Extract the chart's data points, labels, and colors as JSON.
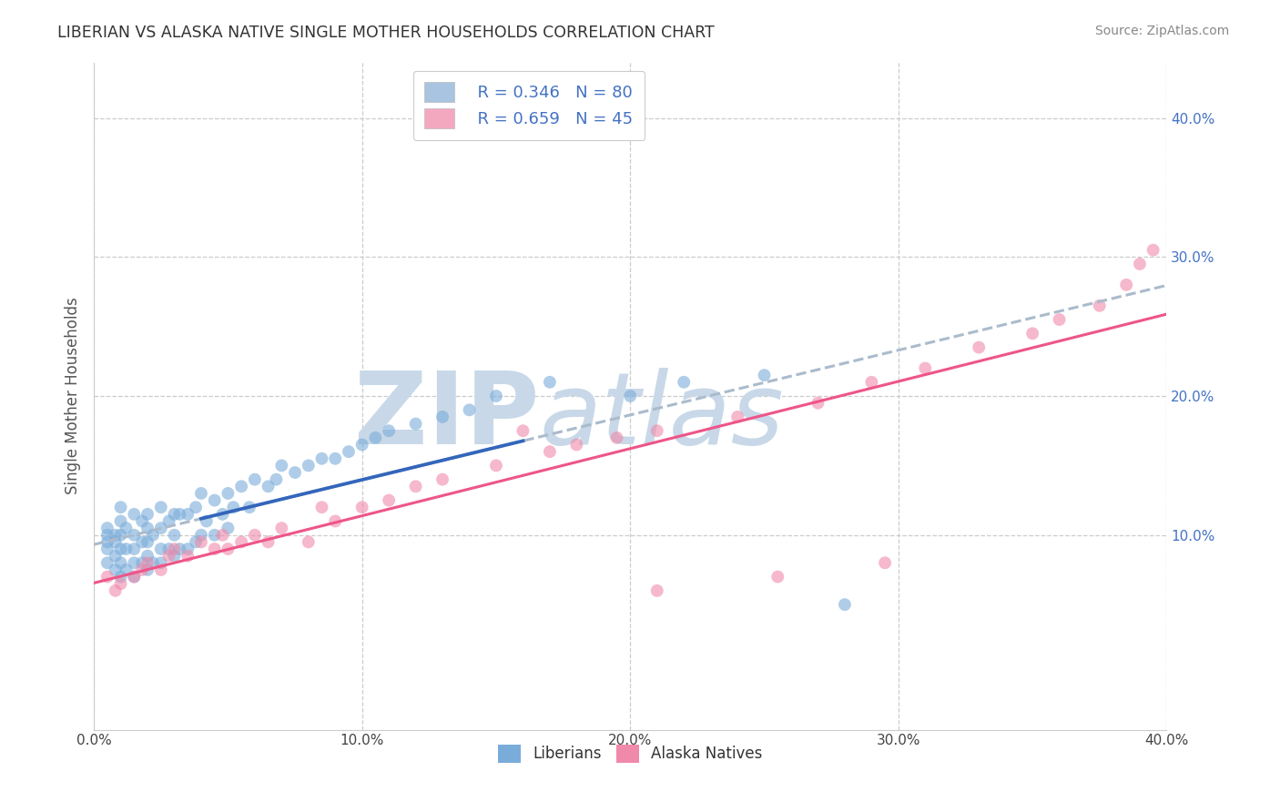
{
  "title": "LIBERIAN VS ALASKA NATIVE SINGLE MOTHER HOUSEHOLDS CORRELATION CHART",
  "source_text": "Source: ZipAtlas.com",
  "ylabel": "Single Mother Households",
  "xlim": [
    0.0,
    0.4
  ],
  "ylim": [
    -0.04,
    0.44
  ],
  "x_ticks": [
    0.0,
    0.1,
    0.2,
    0.3,
    0.4
  ],
  "x_tick_labels": [
    "0.0%",
    "10.0%",
    "20.0%",
    "30.0%",
    "40.0%"
  ],
  "y_ticks_right": [
    0.1,
    0.2,
    0.3,
    0.4
  ],
  "y_tick_labels_right": [
    "10.0%",
    "20.0%",
    "30.0%",
    "40.0%"
  ],
  "grid_color": "#cccccc",
  "background_color": "#ffffff",
  "watermark_text": "ZIPatlas",
  "watermark_color": "#c8d8e8",
  "legend_r1": "R = 0.346",
  "legend_n1": "N = 80",
  "legend_r2": "R = 0.659",
  "legend_n2": "N = 45",
  "legend_color1": "#a8c4e0",
  "legend_color2": "#f4a8c0",
  "dot_color1": "#7aacda",
  "dot_color2": "#f08aaa",
  "dot_alpha": 0.6,
  "dot_size": 100,
  "line_color1": "#3366bb",
  "line_color2": "#ee5588",
  "line_dashed_color": "#aabbcc",
  "line_width": 2.2,
  "liberian_x": [
    0.005,
    0.005,
    0.005,
    0.005,
    0.005,
    0.008,
    0.008,
    0.008,
    0.008,
    0.01,
    0.01,
    0.01,
    0.01,
    0.01,
    0.01,
    0.012,
    0.012,
    0.012,
    0.015,
    0.015,
    0.015,
    0.015,
    0.015,
    0.018,
    0.018,
    0.018,
    0.02,
    0.02,
    0.02,
    0.02,
    0.02,
    0.022,
    0.022,
    0.025,
    0.025,
    0.025,
    0.025,
    0.028,
    0.028,
    0.03,
    0.03,
    0.03,
    0.032,
    0.032,
    0.035,
    0.035,
    0.038,
    0.038,
    0.04,
    0.04,
    0.042,
    0.045,
    0.045,
    0.048,
    0.05,
    0.05,
    0.052,
    0.055,
    0.058,
    0.06,
    0.065,
    0.068,
    0.07,
    0.075,
    0.08,
    0.085,
    0.09,
    0.095,
    0.1,
    0.105,
    0.11,
    0.12,
    0.13,
    0.14,
    0.15,
    0.17,
    0.2,
    0.22,
    0.25,
    0.28
  ],
  "liberian_y": [
    0.08,
    0.09,
    0.095,
    0.1,
    0.105,
    0.075,
    0.085,
    0.095,
    0.1,
    0.07,
    0.08,
    0.09,
    0.1,
    0.11,
    0.12,
    0.075,
    0.09,
    0.105,
    0.07,
    0.08,
    0.09,
    0.1,
    0.115,
    0.08,
    0.095,
    0.11,
    0.075,
    0.085,
    0.095,
    0.105,
    0.115,
    0.08,
    0.1,
    0.08,
    0.09,
    0.105,
    0.12,
    0.09,
    0.11,
    0.085,
    0.1,
    0.115,
    0.09,
    0.115,
    0.09,
    0.115,
    0.095,
    0.12,
    0.1,
    0.13,
    0.11,
    0.1,
    0.125,
    0.115,
    0.105,
    0.13,
    0.12,
    0.135,
    0.12,
    0.14,
    0.135,
    0.14,
    0.15,
    0.145,
    0.15,
    0.155,
    0.155,
    0.16,
    0.165,
    0.17,
    0.175,
    0.18,
    0.185,
    0.19,
    0.2,
    0.21,
    0.2,
    0.21,
    0.215,
    0.05
  ],
  "alaska_x": [
    0.005,
    0.008,
    0.01,
    0.015,
    0.018,
    0.02,
    0.025,
    0.028,
    0.03,
    0.035,
    0.04,
    0.045,
    0.048,
    0.05,
    0.055,
    0.06,
    0.065,
    0.07,
    0.08,
    0.085,
    0.09,
    0.1,
    0.11,
    0.12,
    0.13,
    0.15,
    0.17,
    0.195,
    0.21,
    0.24,
    0.27,
    0.29,
    0.31,
    0.33,
    0.35,
    0.36,
    0.375,
    0.385,
    0.39,
    0.395,
    0.21,
    0.255,
    0.18,
    0.16,
    0.295
  ],
  "alaska_y": [
    0.07,
    0.06,
    0.065,
    0.07,
    0.075,
    0.08,
    0.075,
    0.085,
    0.09,
    0.085,
    0.095,
    0.09,
    0.1,
    0.09,
    0.095,
    0.1,
    0.095,
    0.105,
    0.095,
    0.12,
    0.11,
    0.12,
    0.125,
    0.135,
    0.14,
    0.15,
    0.16,
    0.17,
    0.175,
    0.185,
    0.195,
    0.21,
    0.22,
    0.235,
    0.245,
    0.255,
    0.265,
    0.28,
    0.295,
    0.305,
    0.06,
    0.07,
    0.165,
    0.175,
    0.08
  ],
  "liberian_line_x": [
    0.04,
    0.16
  ],
  "liberian_line_y_start": 0.095,
  "liberian_line_y_end": 0.17,
  "alaska_line_x": [
    0.0,
    0.4
  ],
  "alaska_line_y_start": 0.06,
  "alaska_line_y_end": 0.27
}
